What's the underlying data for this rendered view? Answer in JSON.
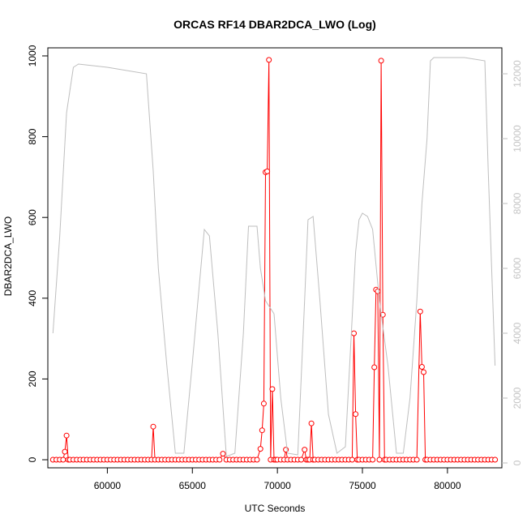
{
  "chart_data": {
    "type": "line",
    "title": "ORCAS RF14 DBAR2DCA_LWO (Log)",
    "xlabel": "UTC Seconds",
    "ylabel": "DBAR2DCA_LWO",
    "y2label": "",
    "xlim": [
      56500,
      83200
    ],
    "ylim": [
      -20,
      1020
    ],
    "y2lim": [
      -150,
      12800
    ],
    "x_ticks": [
      60000,
      65000,
      70000,
      75000,
      80000
    ],
    "y_ticks": [
      0,
      200,
      400,
      600,
      800,
      1000
    ],
    "y2_ticks": [
      0,
      2000,
      4000,
      6000,
      8000,
      10000,
      12000
    ],
    "grid": false,
    "colors": {
      "primary": "#ff0000",
      "secondary": "#bebebe",
      "axis": "#000000",
      "secondary_axis": "#bebebe"
    },
    "series": [
      {
        "axis": "left",
        "style": "line+points",
        "x": [
          56800,
          57000,
          57200,
          57400,
          57500,
          57600,
          57700,
          57800,
          58000,
          58200,
          58400,
          58600,
          58800,
          59000,
          59200,
          59400,
          59600,
          59800,
          60000,
          60200,
          60400,
          60600,
          60800,
          61000,
          61200,
          61400,
          61600,
          61800,
          62000,
          62200,
          62400,
          62600,
          62700,
          62800,
          63000,
          63200,
          63400,
          63600,
          63800,
          64000,
          64200,
          64400,
          64600,
          64800,
          65000,
          65200,
          65400,
          65600,
          65800,
          66000,
          66200,
          66400,
          66600,
          66800,
          67000,
          67200,
          67400,
          67600,
          67800,
          68000,
          68200,
          68400,
          68600,
          68800,
          69000,
          69100,
          69200,
          69300,
          69400,
          69500,
          69600,
          69700,
          69800,
          69900,
          70000,
          70200,
          70400,
          70500,
          70600,
          70800,
          71000,
          71200,
          71400,
          71600,
          71700,
          71800,
          71900,
          72000,
          72100,
          72200,
          72400,
          72600,
          72800,
          73000,
          73200,
          73400,
          73600,
          73800,
          74000,
          74200,
          74400,
          74500,
          74600,
          74700,
          74800,
          75000,
          75200,
          75400,
          75600,
          75700,
          75800,
          75900,
          76000,
          76100,
          76200,
          76300,
          76400,
          76600,
          76800,
          77000,
          77200,
          77400,
          77600,
          77800,
          78000,
          78200,
          78400,
          78500,
          78600,
          78700,
          78800,
          79000,
          79200,
          79400,
          79600,
          79800,
          80000,
          80200,
          80400,
          80600,
          80800,
          81000,
          81200,
          81400,
          81600,
          81800,
          82000,
          82200,
          82400,
          82600,
          82800
        ],
        "y": [
          0,
          0,
          0,
          0,
          20,
          60,
          0,
          0,
          0,
          0,
          0,
          0,
          0,
          0,
          0,
          0,
          0,
          0,
          0,
          0,
          0,
          0,
          0,
          0,
          0,
          0,
          0,
          0,
          0,
          0,
          0,
          0,
          82,
          0,
          0,
          0,
          0,
          0,
          0,
          0,
          0,
          0,
          0,
          0,
          0,
          0,
          0,
          0,
          0,
          0,
          0,
          0,
          0,
          15,
          0,
          0,
          0,
          0,
          0,
          0,
          0,
          0,
          0,
          0,
          27,
          73,
          139,
          712,
          714,
          990,
          0,
          175,
          0,
          0,
          0,
          0,
          0,
          25,
          0,
          0,
          0,
          0,
          0,
          25,
          0,
          0,
          0,
          90,
          0,
          0,
          0,
          0,
          0,
          0,
          0,
          0,
          0,
          0,
          0,
          0,
          0,
          313,
          113,
          0,
          0,
          0,
          0,
          0,
          0,
          229,
          421,
          417,
          0,
          988,
          359,
          0,
          0,
          0,
          0,
          0,
          0,
          0,
          0,
          0,
          0,
          0,
          367,
          230,
          217,
          0,
          0,
          0,
          0,
          0,
          0,
          0,
          0,
          0,
          0,
          0,
          0,
          0,
          0,
          0,
          0,
          0,
          0,
          0,
          0,
          0,
          0
        ]
      },
      {
        "axis": "right",
        "style": "line",
        "x": [
          56800,
          57200,
          57600,
          58000,
          58300,
          60000,
          62300,
          62700,
          63000,
          63500,
          64000,
          64500,
          65000,
          65700,
          66000,
          66500,
          67000,
          67500,
          68000,
          68300,
          68800,
          69000,
          69300,
          69800,
          70200,
          70600,
          71200,
          71600,
          71800,
          72100,
          72500,
          73000,
          73500,
          74000,
          74600,
          74800,
          75000,
          75300,
          75600,
          76000,
          76500,
          77000,
          77400,
          77800,
          78200,
          78500,
          78800,
          79000,
          79200,
          80000,
          81000,
          82200,
          82400,
          82800
        ],
        "y": [
          4000,
          7000,
          10800,
          12200,
          12300,
          12200,
          12000,
          9000,
          6000,
          3000,
          300,
          300,
          3100,
          7200,
          7000,
          4000,
          200,
          300,
          4000,
          7300,
          7300,
          6000,
          5000,
          4600,
          2000,
          300,
          250,
          5000,
          7500,
          7600,
          5000,
          1500,
          300,
          500,
          6500,
          7500,
          7700,
          7600,
          7200,
          5000,
          3000,
          300,
          300,
          2000,
          5000,
          8000,
          10000,
          12400,
          12500,
          12500,
          12500,
          12400,
          9000,
          3000
        ]
      }
    ]
  }
}
